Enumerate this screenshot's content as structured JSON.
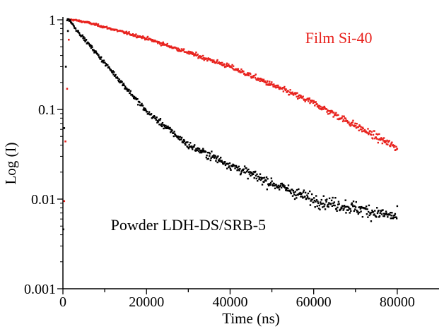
{
  "chart_data": {
    "type": "scatter",
    "xlabel": "Time (ns)",
    "ylabel": "Log (I)",
    "xlim": [
      0,
      90000
    ],
    "ylim": [
      0.001,
      1.2
    ],
    "yscale": "log",
    "x_ticks": [
      0,
      20000,
      40000,
      60000,
      80000
    ],
    "x_tick_labels": [
      "0",
      "20000",
      "40000",
      "60000",
      "80000"
    ],
    "y_ticks": [
      0.001,
      0.01,
      0.1,
      1
    ],
    "y_tick_labels": [
      "0.001",
      "0.01",
      "0.1",
      "1"
    ],
    "grid": false,
    "legend": "none",
    "annotations": [
      {
        "text": "Film Si-40",
        "color": "#e8231e",
        "x": 66000,
        "y": 0.55
      },
      {
        "text": "Powder LDH-DS/SRB-5",
        "color": "#000000",
        "x": 30000,
        "y": 0.0045
      }
    ],
    "series": [
      {
        "name": "Film Si-40",
        "color": "#e8231e",
        "x_range": [
          1200,
          80000
        ],
        "rise_points": [
          [
            300,
            0.0095
          ],
          [
            600,
            0.044
          ],
          [
            1000,
            0.17
          ],
          [
            1400,
            0.6
          ],
          [
            1900,
            0.93
          ]
        ],
        "profile": [
          [
            2500,
            1.0
          ],
          [
            6000,
            0.93
          ],
          [
            20000,
            0.62
          ],
          [
            40000,
            0.3
          ],
          [
            60000,
            0.118
          ],
          [
            80000,
            0.037
          ]
        ]
      },
      {
        "name": "Powder LDH-DS/SRB-5",
        "color": "#000000",
        "x_range": [
          1000,
          80000
        ],
        "rise_points": [
          [
            100,
            0.0046
          ],
          [
            300,
            0.062
          ],
          [
            700,
            0.3
          ],
          [
            1200,
            0.75
          ]
        ],
        "profile": [
          [
            1600,
            1.0
          ],
          [
            3000,
            0.8
          ],
          [
            10000,
            0.33
          ],
          [
            20000,
            0.095
          ],
          [
            30000,
            0.04
          ],
          [
            40000,
            0.024
          ],
          [
            50000,
            0.015
          ],
          [
            60000,
            0.0098
          ],
          [
            70000,
            0.0079
          ],
          [
            80000,
            0.0063
          ]
        ]
      }
    ]
  }
}
